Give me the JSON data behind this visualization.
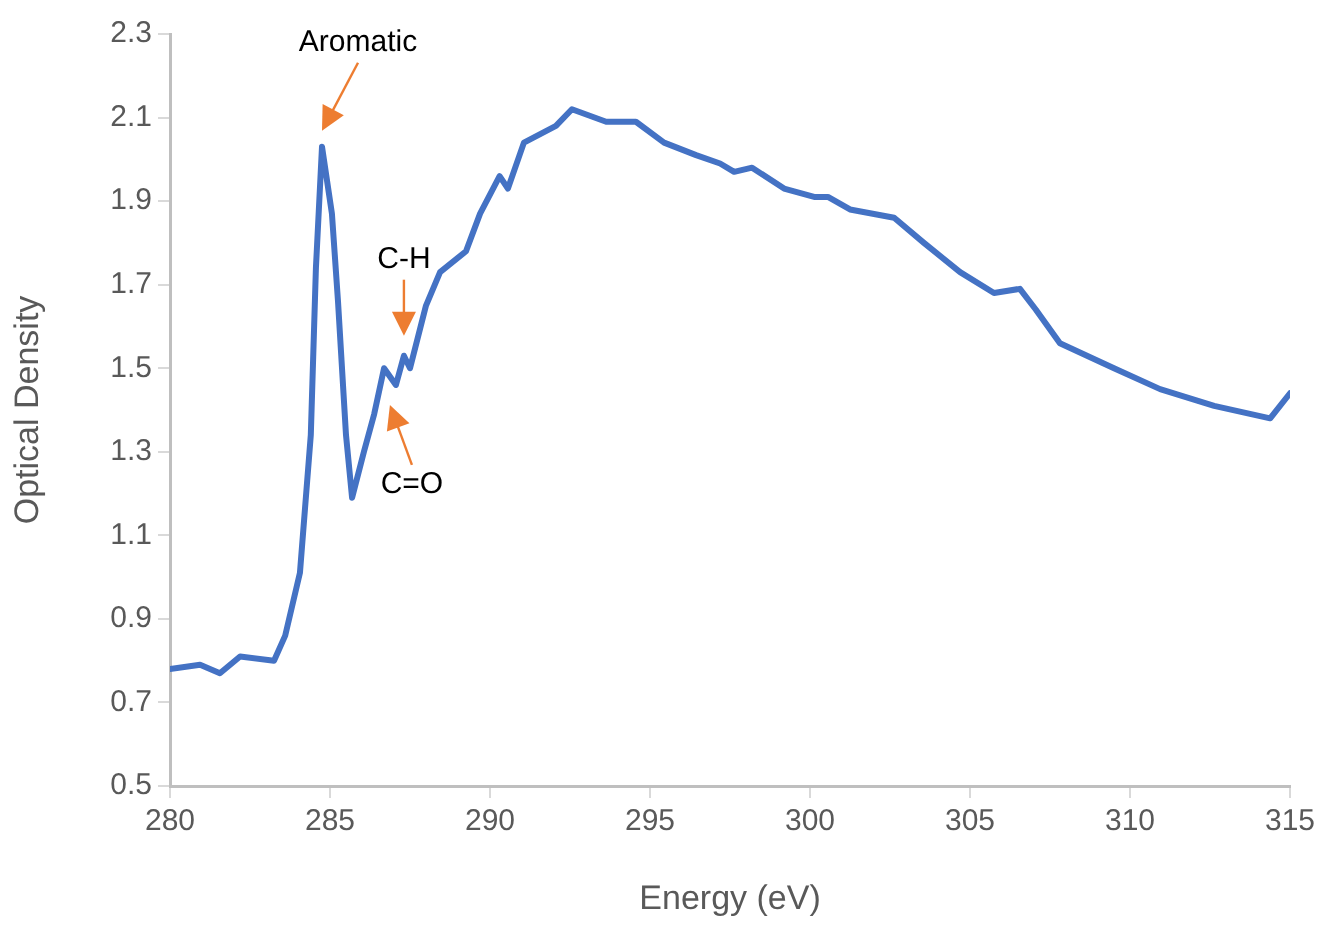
{
  "chart_data": {
    "type": "line",
    "xlabel": "Energy (eV)",
    "ylabel": "Optical Density",
    "xlim": [
      280,
      315
    ],
    "xticks": [
      280,
      285,
      290,
      295,
      300,
      305,
      310,
      315
    ],
    "ylim": [
      0.5,
      2.3
    ],
    "yticks": [
      0.5,
      0.7,
      0.9,
      1.1,
      1.3,
      1.5,
      1.7,
      1.9,
      2.1,
      2.3
    ],
    "grid": false,
    "legend": false,
    "marker": "none",
    "line_style": "solid",
    "series": [
      {
        "color": "#4472c4",
        "x": [
          280,
          280.94,
          281.56,
          282.19,
          283.25,
          283.6,
          284.06,
          284.4,
          284.56,
          284.75,
          285.06,
          285.25,
          285.5,
          285.69,
          286.06,
          286.38,
          286.69,
          287.06,
          287.31,
          287.5,
          288.0,
          288.44,
          289.25,
          289.69,
          290.3,
          290.56,
          291.06,
          292.06,
          292.56,
          293.63,
          294.56,
          295.44,
          296.44,
          297.19,
          297.63,
          298.19,
          299.19,
          300.13,
          300.56,
          301.25,
          302.63,
          303.56,
          304.69,
          305.75,
          306.56,
          307.06,
          307.81,
          309.5,
          310.94,
          312.63,
          314.38,
          315
        ],
        "values": [
          0.78,
          0.79,
          0.77,
          0.81,
          0.8,
          0.86,
          1.01,
          1.34,
          1.74,
          2.03,
          1.87,
          1.66,
          1.34,
          1.19,
          1.3,
          1.39,
          1.5,
          1.46,
          1.53,
          1.5,
          1.65,
          1.73,
          1.78,
          1.87,
          1.96,
          1.93,
          2.04,
          2.08,
          2.12,
          2.09,
          2.09,
          2.04,
          2.01,
          1.99,
          1.97,
          1.98,
          1.93,
          1.91,
          1.91,
          1.88,
          1.86,
          1.8,
          1.73,
          1.68,
          1.69,
          1.64,
          1.56,
          1.5,
          1.45,
          1.41,
          1.38,
          1.44
        ]
      }
    ],
    "annotations": [
      {
        "text": "Aromatic",
        "x": 284.75,
        "y": 2.03
      },
      {
        "text": "C-H",
        "x": 287.31,
        "y": 1.53
      },
      {
        "text": "C=O",
        "x": 287.06,
        "y": 1.46
      }
    ]
  }
}
